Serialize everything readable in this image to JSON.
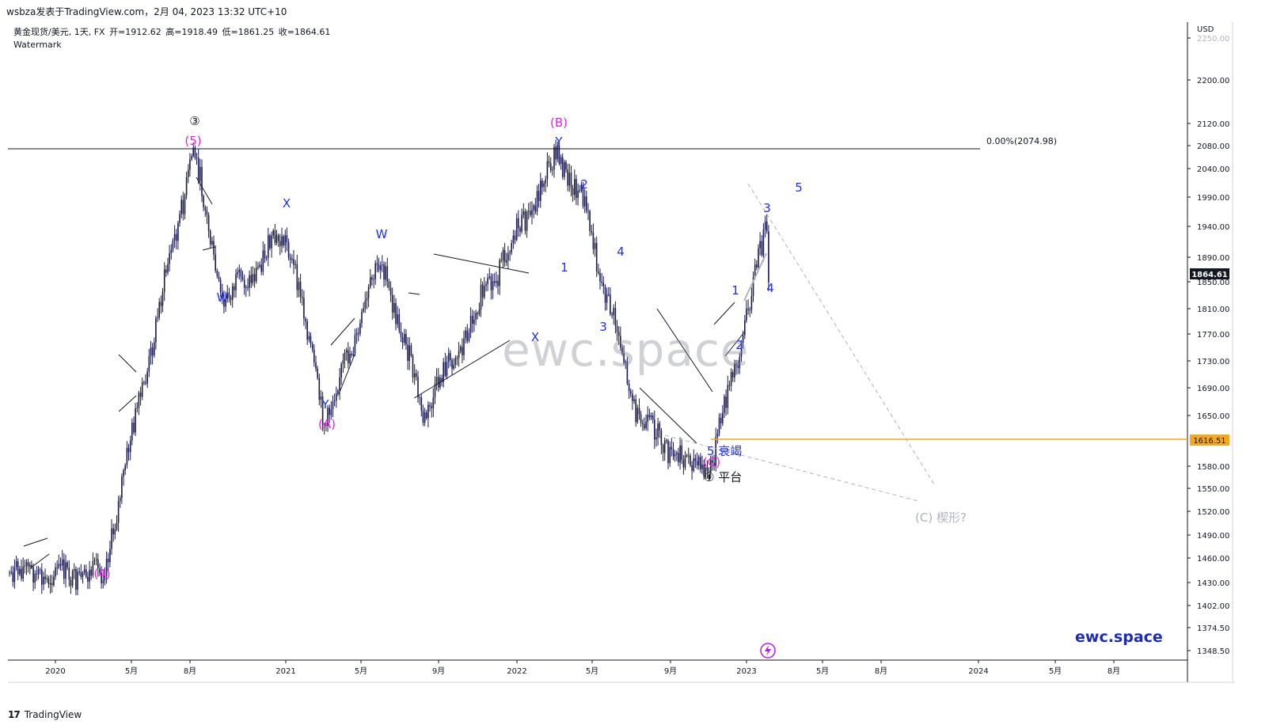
{
  "header": {
    "publisher_line": "wsbza发表于TradingView.com，2月 04, 2023 13:32 UTC+10"
  },
  "legend": {
    "symbol_line": "黄金现货/美元, 1天, FX",
    "open": "开=1912.62",
    "high": "高=1918.49",
    "low": "低=1861.25",
    "close": "收=1864.61",
    "watermark_label": "Watermark"
  },
  "price_scale": {
    "currency": "USD",
    "ticks": [
      "2250.00",
      "2200.00",
      "2120.00",
      "2080.00",
      "2040.00",
      "1990.00",
      "1940.00",
      "1890.00",
      "1850.00",
      "1810.00",
      "1770.00",
      "1730.00",
      "1690.00",
      "1650.00",
      "1580.00",
      "1550.00",
      "1520.00",
      "1490.00",
      "1460.00",
      "1430.00",
      "1402.00",
      "1374.50",
      "1348.50"
    ],
    "last_price_label": "1864.61",
    "level_label": "1616.51"
  },
  "time_scale": {
    "ticks": [
      "2020",
      "5月",
      "8月",
      "2021",
      "5月",
      "9月",
      "2022",
      "5月",
      "9月",
      "2023",
      "5月",
      "8月",
      "2024",
      "5月",
      "8月"
    ]
  },
  "overlay_text": {
    "watermark": "ewc.space",
    "brand": "ewc.space",
    "fib_label": "0.00%(2074.98)",
    "footer": "TradingView",
    "footer_logo": "17"
  },
  "colors": {
    "candle": "#1a1a4e",
    "wave_blue": "#1e2cff",
    "wave_magenta": "#e91ee0",
    "wave_gray": "#b0b3bc",
    "level_orange": "#f5a623",
    "last_price_bg": "#131722"
  },
  "chart_data": {
    "type": "candlestick",
    "title": "黄金现货/美元, 1天, FX",
    "ylabel": "USD",
    "ylim": [
      1330,
      2260
    ],
    "x_range": [
      "2019-11",
      "2024-10"
    ],
    "last": {
      "open": 1912.62,
      "high": 1918.49,
      "low": 1861.25,
      "close": 1864.61
    },
    "key_points": [
      {
        "date": "2019-11",
        "price": 1470
      },
      {
        "date": "2019-12",
        "price": 1460
      },
      {
        "date": "2020-03",
        "price": 1455
      },
      {
        "date": "2020-08",
        "price": 2074.98
      },
      {
        "date": "2020-11",
        "price": 1850
      },
      {
        "date": "2021-01",
        "price": 1955
      },
      {
        "date": "2021-03",
        "price": 1680
      },
      {
        "date": "2021-06",
        "price": 1915
      },
      {
        "date": "2021-08",
        "price": 1690
      },
      {
        "date": "2021-11",
        "price": 1870
      },
      {
        "date": "2022-03",
        "price": 2070
      },
      {
        "date": "2022-04",
        "price": 1995
      },
      {
        "date": "2022-07",
        "price": 1680
      },
      {
        "date": "2022-09",
        "price": 1620
      },
      {
        "date": "2022-11",
        "price": 1616.51
      },
      {
        "date": "2023-01",
        "price": 1960
      },
      {
        "date": "2023-02",
        "price": 1864.61
      }
    ],
    "horizontal_levels": [
      {
        "price": 2074.98,
        "label": "0.00%(2074.98)"
      },
      {
        "price": 1616.51,
        "label": "1616.51"
      }
    ],
    "wave_labels": [
      {
        "text": "③",
        "color": "black"
      },
      {
        "text": "(5)",
        "color": "magenta"
      },
      {
        "text": "(4)",
        "color": "magenta"
      },
      {
        "text": "W",
        "color": "blue"
      },
      {
        "text": "X",
        "color": "blue"
      },
      {
        "text": "Y",
        "color": "blue"
      },
      {
        "text": "(A)",
        "color": "magenta"
      },
      {
        "text": "W",
        "color": "blue"
      },
      {
        "text": "X",
        "color": "blue"
      },
      {
        "text": "(B)",
        "color": "magenta"
      },
      {
        "text": "Y",
        "color": "blue"
      },
      {
        "text": "1",
        "color": "blue"
      },
      {
        "text": "2",
        "color": "blue"
      },
      {
        "text": "3",
        "color": "blue"
      },
      {
        "text": "4",
        "color": "blue"
      },
      {
        "text": "5 衰竭",
        "color": "blue"
      },
      {
        "text": "(C)",
        "color": "magenta"
      },
      {
        "text": "④ 平台",
        "color": "black"
      },
      {
        "text": "1",
        "color": "blue"
      },
      {
        "text": "2",
        "color": "blue"
      },
      {
        "text": "3",
        "color": "blue"
      },
      {
        "text": "4",
        "color": "blue"
      },
      {
        "text": "5",
        "color": "blue"
      },
      {
        "text": "(C) 楔形?",
        "color": "gray"
      }
    ]
  }
}
